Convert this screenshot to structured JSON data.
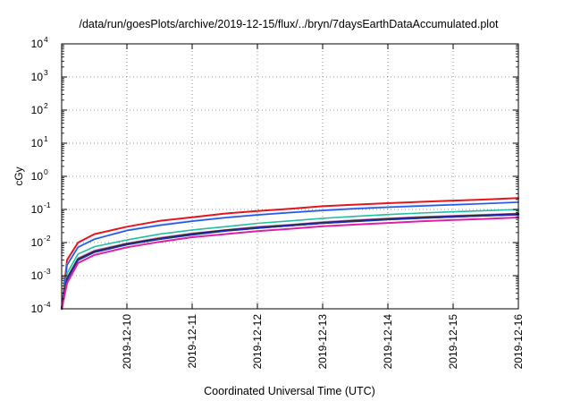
{
  "chart_data": {
    "type": "line",
    "title": "/data/run/goesPlots/archive/2019-12-15/flux/../bryn/7daysEarthDataAccumulated.plot",
    "xlabel": "Coordinated Universal Time (UTC)",
    "ylabel": "cGy",
    "xlim": [
      "2019-12-09",
      "2019-12-16"
    ],
    "x_ticks": [
      "2019-12-10",
      "2019-12-11",
      "2019-12-12",
      "2019-12-13",
      "2019-12-14",
      "2019-12-15",
      "2019-12-16"
    ],
    "y_scale": "log",
    "ylim": [
      0.0001,
      10000
    ],
    "y_ticks": [
      {
        "base": "10",
        "exp": "-4",
        "value": 0.0001
      },
      {
        "base": "10",
        "exp": "-3",
        "value": 0.001
      },
      {
        "base": "10",
        "exp": "-2",
        "value": 0.01
      },
      {
        "base": "10",
        "exp": "-1",
        "value": 0.1
      },
      {
        "base": "10",
        "exp": "0",
        "value": 1
      },
      {
        "base": "10",
        "exp": "1",
        "value": 10
      },
      {
        "base": "10",
        "exp": "2",
        "value": 100
      },
      {
        "base": "10",
        "exp": "3",
        "value": 1000
      },
      {
        "base": "10",
        "exp": "4",
        "value": 10000
      }
    ],
    "grid": true,
    "x": [
      "2019-12-09 02:00",
      "2019-12-09 06:00",
      "2019-12-09 12:00",
      "2019-12-10 00:00",
      "2019-12-10 12:00",
      "2019-12-11 00:00",
      "2019-12-11 12:00",
      "2019-12-12 00:00",
      "2019-12-12 12:00",
      "2019-12-13 00:00",
      "2019-12-13 12:00",
      "2019-12-14 00:00",
      "2019-12-14 12:00",
      "2019-12-15 00:00",
      "2019-12-15 12:00",
      "2019-12-16 00:00"
    ],
    "series": [
      {
        "color": "#e8141c",
        "width": 2,
        "values": [
          0.003,
          0.01,
          0.018,
          0.03,
          0.045,
          0.058,
          0.075,
          0.09,
          0.105,
          0.125,
          0.14,
          0.155,
          0.17,
          0.185,
          0.2,
          0.22
        ]
      },
      {
        "color": "#a8c8ff",
        "width": 1.6,
        "values": [
          0.0022,
          0.0075,
          0.013,
          0.024,
          0.035,
          0.046,
          0.058,
          0.07,
          0.083,
          0.097,
          0.11,
          0.12,
          0.132,
          0.143,
          0.155,
          0.17
        ]
      },
      {
        "color": "#2458e8",
        "width": 1.6,
        "values": [
          0.0021,
          0.0072,
          0.0125,
          0.023,
          0.033,
          0.044,
          0.056,
          0.068,
          0.08,
          0.093,
          0.105,
          0.116,
          0.127,
          0.138,
          0.15,
          0.165
        ]
      },
      {
        "color": "#1fc0a0",
        "width": 1.6,
        "values": [
          0.0012,
          0.0045,
          0.0075,
          0.012,
          0.018,
          0.024,
          0.03,
          0.038,
          0.045,
          0.054,
          0.062,
          0.07,
          0.078,
          0.085,
          0.092,
          0.1
        ]
      },
      {
        "color": "#c070c0",
        "width": 1.6,
        "values": [
          0.0009,
          0.0034,
          0.0058,
          0.0095,
          0.014,
          0.019,
          0.024,
          0.03,
          0.035,
          0.042,
          0.048,
          0.054,
          0.06,
          0.065,
          0.07,
          0.076
        ]
      },
      {
        "color": "#2a2a2a",
        "width": 2.4,
        "values": [
          0.0008,
          0.0031,
          0.0053,
          0.009,
          0.013,
          0.018,
          0.023,
          0.028,
          0.033,
          0.039,
          0.045,
          0.051,
          0.056,
          0.061,
          0.066,
          0.072
        ]
      },
      {
        "color": "#1a30c8",
        "width": 1.4,
        "values": [
          0.00075,
          0.0029,
          0.005,
          0.0085,
          0.0125,
          0.017,
          0.022,
          0.027,
          0.032,
          0.038,
          0.043,
          0.049,
          0.054,
          0.059,
          0.064,
          0.069
        ]
      },
      {
        "color": "#e020a0",
        "width": 2,
        "values": [
          0.0006,
          0.0024,
          0.0042,
          0.0072,
          0.0105,
          0.0145,
          0.018,
          0.022,
          0.026,
          0.031,
          0.035,
          0.039,
          0.044,
          0.048,
          0.052,
          0.057
        ]
      }
    ]
  }
}
